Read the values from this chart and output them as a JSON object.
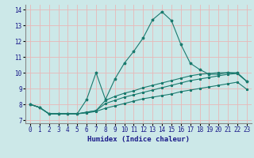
{
  "title": "",
  "xlabel": "Humidex (Indice chaleur)",
  "xlim": [
    -0.5,
    23.5
  ],
  "ylim": [
    6.8,
    14.3
  ],
  "xticks": [
    0,
    1,
    2,
    3,
    4,
    5,
    6,
    7,
    8,
    9,
    10,
    11,
    12,
    13,
    14,
    15,
    16,
    17,
    18,
    19,
    20,
    21,
    22,
    23
  ],
  "yticks": [
    7,
    8,
    9,
    10,
    11,
    12,
    13,
    14
  ],
  "bg_color": "#cce8e8",
  "grid_color": "#e8b8b8",
  "line_color": "#1a7a6e",
  "line1_x": [
    0,
    1,
    2,
    3,
    4,
    5,
    6,
    7,
    8,
    9,
    10,
    11,
    12,
    13,
    14,
    15,
    16,
    17,
    18,
    19,
    20,
    21,
    22,
    23
  ],
  "line1_y": [
    8.0,
    7.8,
    7.4,
    7.4,
    7.4,
    7.4,
    8.3,
    10.0,
    8.3,
    9.6,
    10.6,
    11.35,
    12.2,
    13.35,
    13.85,
    13.3,
    11.8,
    10.6,
    10.2,
    9.9,
    9.9,
    10.0,
    10.0,
    9.45
  ],
  "line2_x": [
    0,
    1,
    2,
    3,
    4,
    5,
    6,
    7,
    8,
    9,
    10,
    11,
    12,
    13,
    14,
    15,
    16,
    17,
    18,
    19,
    20,
    21,
    22,
    23
  ],
  "line2_y": [
    8.0,
    7.8,
    7.4,
    7.4,
    7.4,
    7.4,
    7.5,
    7.6,
    8.25,
    8.5,
    8.7,
    8.85,
    9.05,
    9.2,
    9.35,
    9.5,
    9.65,
    9.8,
    9.9,
    9.95,
    10.0,
    10.0,
    9.95,
    9.45
  ],
  "line3_x": [
    0,
    1,
    2,
    3,
    4,
    5,
    6,
    7,
    8,
    9,
    10,
    11,
    12,
    13,
    14,
    15,
    16,
    17,
    18,
    19,
    20,
    21,
    22,
    23
  ],
  "line3_y": [
    8.0,
    7.8,
    7.4,
    7.4,
    7.4,
    7.4,
    7.5,
    7.6,
    8.05,
    8.25,
    8.45,
    8.6,
    8.75,
    8.9,
    9.05,
    9.2,
    9.35,
    9.5,
    9.6,
    9.7,
    9.8,
    9.9,
    9.95,
    9.45
  ],
  "line4_x": [
    0,
    1,
    2,
    3,
    4,
    5,
    6,
    7,
    8,
    9,
    10,
    11,
    12,
    13,
    14,
    15,
    16,
    17,
    18,
    19,
    20,
    21,
    22,
    23
  ],
  "line4_y": [
    8.0,
    7.8,
    7.4,
    7.4,
    7.4,
    7.4,
    7.45,
    7.55,
    7.75,
    7.9,
    8.05,
    8.2,
    8.35,
    8.45,
    8.55,
    8.65,
    8.8,
    8.9,
    9.0,
    9.1,
    9.2,
    9.3,
    9.4,
    8.95
  ]
}
